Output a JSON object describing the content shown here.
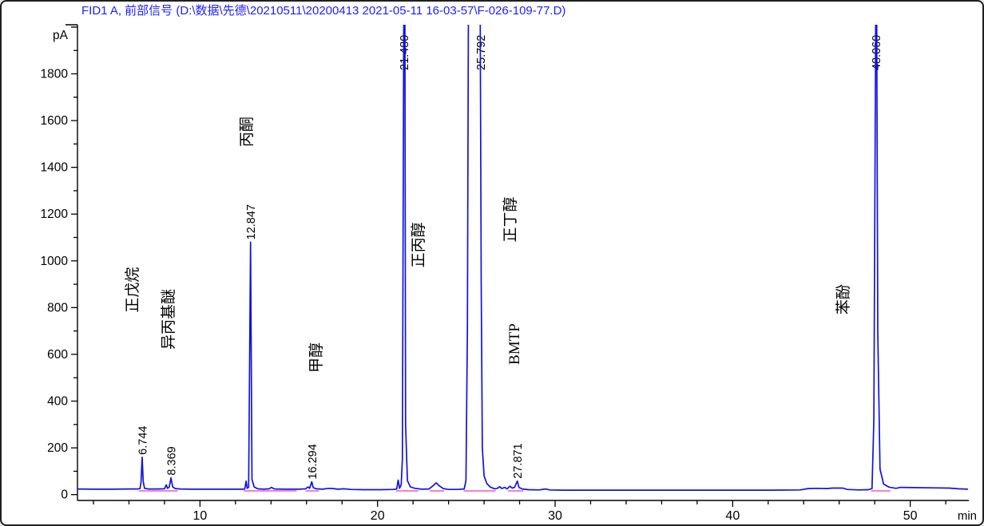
{
  "header": {
    "title": "FID1 A, 前部信号 (D:\\数据\\先德\\20210511\\20200413 2021-05-11 16-03-57\\F-026-109-77.D)"
  },
  "colors": {
    "trace": "#1212e0",
    "integration_baseline": "#f055c8",
    "title_text": "#2020ff",
    "axis": "#000000",
    "background": "#ffffff"
  },
  "axes": {
    "y_unit": "pA",
    "x_unit": "min",
    "y_tick_labels": [
      "0",
      "200",
      "400",
      "600",
      "800",
      "1000",
      "1200",
      "1400",
      "1600",
      "1800"
    ],
    "x_tick_labels": [
      "10",
      "20",
      "30",
      "40",
      "50"
    ]
  },
  "chart_data": {
    "type": "line",
    "title": "FID1 A, 前部信号 (D:\\数据\\先德\\20210511\\20200413 2021-05-11 16-03-57\\F-026-109-77.D)",
    "xlabel": "min",
    "ylabel": "pA",
    "xlim": [
      3.1,
      53.3
    ],
    "ylim": [
      -25,
      2010
    ],
    "x_major_ticks": [
      10,
      20,
      30,
      40,
      50
    ],
    "x_minor_step": 2,
    "y_major_ticks": [
      0,
      200,
      400,
      600,
      800,
      1000,
      1200,
      1400,
      1600,
      1800
    ],
    "y_minor_step": 100,
    "grid": "off",
    "legend": "none",
    "peaks": [
      {
        "retention_time": "6.744",
        "t": 6.744,
        "apex_pA": 160,
        "clipped": false,
        "compound": "正戊烷"
      },
      {
        "retention_time": "8.369",
        "t": 8.369,
        "apex_pA": 72,
        "clipped": false,
        "compound": "异丙基醚"
      },
      {
        "retention_time": "12.847",
        "t": 12.847,
        "apex_pA": 1080,
        "clipped": false,
        "compound": "丙酮"
      },
      {
        "retention_time": "16.294",
        "t": 16.294,
        "apex_pA": 55,
        "clipped": false,
        "compound": "甲醇"
      },
      {
        "retention_time": "21.480",
        "t": 21.48,
        "apex_pA": 2100,
        "clipped": true,
        "compound": "正丙醇"
      },
      {
        "retention_time": "25.792",
        "t": 25.792,
        "apex_pA": 2100,
        "clipped": true,
        "compound": "正丁醇"
      },
      {
        "retention_time": "27.871",
        "t": 27.871,
        "apex_pA": 58,
        "clipped": false,
        "compound": "BMTP"
      },
      {
        "retention_time": "48.060",
        "t": 48.06,
        "apex_pA": 2100,
        "clipped": true,
        "compound": "苯酚"
      }
    ],
    "compound_labels": [
      {
        "text": "正戊烷",
        "t": 6.16,
        "pA": 876,
        "serif": true
      },
      {
        "text": "异丙基醚",
        "t": 8.18,
        "pA": 750,
        "serif": true
      },
      {
        "text": "丙酮",
        "t": 12.6,
        "pA": 1552,
        "serif": true
      },
      {
        "text": "甲醇",
        "t": 16.5,
        "pA": 586,
        "serif": true
      },
      {
        "text": "正丙醇",
        "t": 22.27,
        "pA": 1068,
        "serif": true
      },
      {
        "text": "正丁醇",
        "t": 27.44,
        "pA": 1177,
        "serif": true
      },
      {
        "text": "BMTP",
        "t": 27.66,
        "pA": 644,
        "serif": true
      },
      {
        "text": "苯酚",
        "t": 46.2,
        "pA": 835,
        "serif": true
      }
    ],
    "integration_baselines": [
      {
        "t1": 6.55,
        "t2": 8.75,
        "pA": 16
      },
      {
        "t1": 12.45,
        "t2": 15.45,
        "pA": 16
      },
      {
        "t1": 15.95,
        "t2": 16.7,
        "pA": 16
      },
      {
        "t1": 21.05,
        "t2": 22.3,
        "pA": 16
      },
      {
        "t1": 22.95,
        "t2": 23.75,
        "pA": 16
      },
      {
        "t1": 24.85,
        "t2": 26.65,
        "pA": 16
      },
      {
        "t1": 27.35,
        "t2": 28.2,
        "pA": 16
      },
      {
        "t1": 47.8,
        "t2": 48.9,
        "pA": 16
      }
    ],
    "trace": [
      [
        3.1,
        24
      ],
      [
        4,
        23
      ],
      [
        5,
        23
      ],
      [
        6,
        24
      ],
      [
        6.5,
        24
      ],
      [
        6.62,
        26
      ],
      [
        6.68,
        55
      ],
      [
        6.744,
        160
      ],
      [
        6.8,
        55
      ],
      [
        6.88,
        27
      ],
      [
        7.1,
        24
      ],
      [
        7.6,
        24
      ],
      [
        8.0,
        25
      ],
      [
        8.1,
        42
      ],
      [
        8.17,
        27
      ],
      [
        8.27,
        32
      ],
      [
        8.369,
        72
      ],
      [
        8.46,
        33
      ],
      [
        8.6,
        26
      ],
      [
        8.9,
        24
      ],
      [
        9.5,
        23
      ],
      [
        10.5,
        23
      ],
      [
        11.5,
        23
      ],
      [
        12.4,
        23
      ],
      [
        12.52,
        24
      ],
      [
        12.6,
        58
      ],
      [
        12.66,
        27
      ],
      [
        12.74,
        32
      ],
      [
        12.847,
        1080
      ],
      [
        12.93,
        65
      ],
      [
        13.05,
        33
      ],
      [
        13.25,
        25
      ],
      [
        13.6,
        23
      ],
      [
        13.9,
        25
      ],
      [
        14.02,
        31
      ],
      [
        14.2,
        24
      ],
      [
        14.8,
        23
      ],
      [
        15.6,
        23
      ],
      [
        15.95,
        25
      ],
      [
        16.08,
        33
      ],
      [
        16.17,
        27
      ],
      [
        16.294,
        55
      ],
      [
        16.38,
        30
      ],
      [
        16.55,
        25
      ],
      [
        16.9,
        23
      ],
      [
        17.25,
        27
      ],
      [
        17.5,
        26
      ],
      [
        17.75,
        23
      ],
      [
        18.1,
        25
      ],
      [
        18.5,
        22
      ],
      [
        19.2,
        21
      ],
      [
        20.2,
        21
      ],
      [
        20.9,
        22
      ],
      [
        21.08,
        24
      ],
      [
        21.16,
        62
      ],
      [
        21.24,
        27
      ],
      [
        21.33,
        42
      ],
      [
        21.4,
        150
      ],
      [
        21.48,
        2100
      ],
      [
        21.54,
        2100
      ],
      [
        21.58,
        300
      ],
      [
        21.68,
        60
      ],
      [
        21.85,
        33
      ],
      [
        22.1,
        27
      ],
      [
        22.5,
        23
      ],
      [
        22.9,
        24
      ],
      [
        23.1,
        36
      ],
      [
        23.3,
        50
      ],
      [
        23.5,
        36
      ],
      [
        23.7,
        26
      ],
      [
        24.0,
        22
      ],
      [
        24.5,
        22
      ],
      [
        24.88,
        24
      ],
      [
        24.98,
        60
      ],
      [
        25.06,
        700
      ],
      [
        25.12,
        2100
      ],
      [
        25.78,
        2100
      ],
      [
        25.84,
        900
      ],
      [
        25.9,
        200
      ],
      [
        26.0,
        80
      ],
      [
        26.15,
        48
      ],
      [
        26.35,
        32
      ],
      [
        26.6,
        25
      ],
      [
        26.75,
        27
      ],
      [
        26.88,
        34
      ],
      [
        27.0,
        26
      ],
      [
        27.15,
        31
      ],
      [
        27.3,
        25
      ],
      [
        27.45,
        36
      ],
      [
        27.58,
        28
      ],
      [
        27.72,
        31
      ],
      [
        27.871,
        58
      ],
      [
        27.96,
        31
      ],
      [
        28.15,
        24
      ],
      [
        28.5,
        21
      ],
      [
        29.1,
        20
      ],
      [
        29.45,
        24
      ],
      [
        29.7,
        20
      ],
      [
        30.5,
        19
      ],
      [
        32,
        19
      ],
      [
        34,
        19
      ],
      [
        36,
        19
      ],
      [
        38,
        19
      ],
      [
        40,
        19
      ],
      [
        42,
        19
      ],
      [
        43.8,
        20
      ],
      [
        44.25,
        26
      ],
      [
        44.8,
        27
      ],
      [
        45.3,
        26
      ],
      [
        45.6,
        28
      ],
      [
        46.2,
        28
      ],
      [
        46.45,
        22
      ],
      [
        47.1,
        20
      ],
      [
        47.65,
        21
      ],
      [
        47.85,
        26
      ],
      [
        47.95,
        320
      ],
      [
        48.06,
        2100
      ],
      [
        48.11,
        2100
      ],
      [
        48.17,
        700
      ],
      [
        48.3,
        110
      ],
      [
        48.5,
        45
      ],
      [
        48.8,
        32
      ],
      [
        49.2,
        27
      ],
      [
        49.45,
        31
      ],
      [
        50.2,
        30
      ],
      [
        51.2,
        29
      ],
      [
        52.2,
        28
      ],
      [
        52.7,
        25
      ],
      [
        53.25,
        23
      ]
    ]
  }
}
